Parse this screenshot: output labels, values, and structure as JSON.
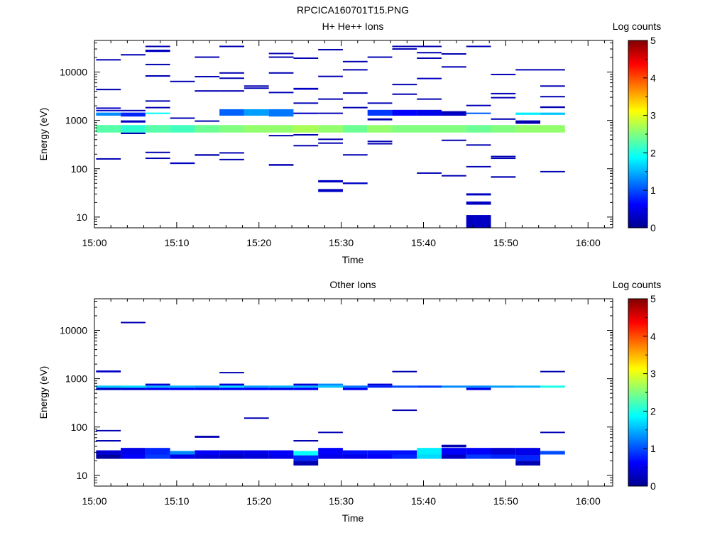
{
  "figure_title": "RPCICA160701T15.PNG",
  "colormap": [
    "#00008f",
    "#0000ff",
    "#0080ff",
    "#00ffff",
    "#80ff80",
    "#ffff00",
    "#ff8000",
    "#ff0000",
    "#800000"
  ],
  "chart_data": [
    {
      "type": "heatmap",
      "title": "H+ He++ Ions",
      "xlabel": "Time",
      "ylabel": "Energy (eV)",
      "x_range": [
        "15:00",
        "16:03"
      ],
      "x_ticks": [
        "15:00",
        "15:10",
        "15:20",
        "15:30",
        "15:40",
        "15:50",
        "16:00"
      ],
      "ylim": [
        6,
        45000
      ],
      "y_scale": "log",
      "y_ticks": [
        10,
        100,
        1000,
        10000
      ],
      "colorbar": {
        "label": "Log counts",
        "range": [
          0,
          5
        ],
        "ticks": [
          "0",
          "1",
          "2",
          "3",
          "4",
          "5"
        ]
      },
      "cells": [
        [
          0,
          560,
          800,
          2.3
        ],
        [
          0,
          1250,
          1450,
          1.3
        ],
        [
          0,
          1550,
          1650,
          0.3
        ],
        [
          0,
          1750,
          1850,
          0.3
        ],
        [
          0,
          4200,
          4500,
          0.2
        ],
        [
          0,
          17500,
          18500,
          0.2
        ],
        [
          0,
          155,
          165,
          0.2
        ],
        [
          1,
          560,
          800,
          2.1
        ],
        [
          1,
          1200,
          1450,
          0.8
        ],
        [
          1,
          1550,
          1650,
          0.2
        ],
        [
          1,
          22500,
          23500,
          0.2
        ],
        [
          1,
          900,
          1000,
          0.3
        ],
        [
          1,
          520,
          560,
          0.2
        ],
        [
          2,
          560,
          800,
          2.3
        ],
        [
          2,
          1350,
          1450,
          1.9
        ],
        [
          2,
          1800,
          1900,
          0.2
        ],
        [
          2,
          2450,
          2600,
          0.2
        ],
        [
          2,
          8000,
          8600,
          0.2
        ],
        [
          2,
          14000,
          14800,
          0.2
        ],
        [
          2,
          26000,
          29000,
          0.3
        ],
        [
          2,
          33000,
          35000,
          0.2
        ],
        [
          2,
          215,
          225,
          0.2
        ],
        [
          2,
          160,
          170,
          0.2
        ],
        [
          3,
          560,
          800,
          2.2
        ],
        [
          3,
          1100,
          1150,
          0.2
        ],
        [
          3,
          6300,
          6600,
          0.2
        ],
        [
          3,
          125,
          135,
          0.3
        ],
        [
          4,
          560,
          800,
          2.4
        ],
        [
          4,
          950,
          1000,
          0.2
        ],
        [
          4,
          8000,
          8300,
          0.2
        ],
        [
          4,
          4000,
          4200,
          0.2
        ],
        [
          4,
          20000,
          21000,
          0.2
        ],
        [
          4,
          185,
          200,
          0.2
        ],
        [
          5,
          560,
          800,
          2.5
        ],
        [
          5,
          1250,
          1700,
          1.1
        ],
        [
          5,
          4000,
          4200,
          0.2
        ],
        [
          5,
          7400,
          7700,
          0.2
        ],
        [
          5,
          9500,
          9900,
          0.2
        ],
        [
          5,
          33000,
          35000,
          0.2
        ],
        [
          5,
          210,
          220,
          0.2
        ],
        [
          5,
          150,
          160,
          0.2
        ],
        [
          6,
          560,
          800,
          2.6
        ],
        [
          6,
          1250,
          1700,
          1.4
        ],
        [
          6,
          4500,
          4800,
          0.2
        ],
        [
          6,
          5000,
          5300,
          0.2
        ],
        [
          7,
          560,
          800,
          2.6
        ],
        [
          7,
          1200,
          1700,
          1.2
        ],
        [
          7,
          470,
          500,
          0.2
        ],
        [
          7,
          115,
          125,
          0.2
        ],
        [
          7,
          3700,
          3900,
          0.2
        ],
        [
          7,
          9500,
          9900,
          0.2
        ],
        [
          7,
          20000,
          21000,
          0.2
        ],
        [
          7,
          24000,
          25000,
          0.2
        ],
        [
          8,
          560,
          800,
          2.7
        ],
        [
          8,
          1350,
          1450,
          0.3
        ],
        [
          8,
          2200,
          2350,
          0.2
        ],
        [
          8,
          4300,
          4700,
          0.3
        ],
        [
          8,
          19000,
          20000,
          0.2
        ],
        [
          8,
          290,
          310,
          0.2
        ],
        [
          8,
          500,
          520,
          0.2
        ],
        [
          9,
          560,
          800,
          2.6
        ],
        [
          9,
          1400,
          1450,
          0.2
        ],
        [
          9,
          2700,
          2850,
          0.2
        ],
        [
          9,
          8000,
          8400,
          0.2
        ],
        [
          9,
          28000,
          30000,
          0.2
        ],
        [
          9,
          400,
          420,
          0.2
        ],
        [
          9,
          330,
          350,
          0.2
        ],
        [
          9,
          52,
          58,
          0.3
        ],
        [
          9,
          33,
          38,
          0.3
        ],
        [
          10,
          560,
          800,
          2.4
        ],
        [
          10,
          1800,
          1900,
          0.2
        ],
        [
          10,
          3600,
          3800,
          0.2
        ],
        [
          10,
          11000,
          11500,
          0.2
        ],
        [
          10,
          16000,
          17000,
          0.2
        ],
        [
          10,
          190,
          200,
          0.2
        ],
        [
          10,
          48,
          52,
          0.3
        ],
        [
          11,
          560,
          800,
          2.6
        ],
        [
          11,
          1250,
          1650,
          0.9
        ],
        [
          11,
          1000,
          1100,
          0.2
        ],
        [
          11,
          2200,
          2350,
          0.2
        ],
        [
          11,
          20000,
          21000,
          0.2
        ],
        [
          11,
          360,
          380,
          0.2
        ],
        [
          11,
          320,
          340,
          0.2
        ],
        [
          12,
          560,
          800,
          2.5
        ],
        [
          12,
          1250,
          1650,
          0.6
        ],
        [
          12,
          3400,
          3600,
          0.2
        ],
        [
          12,
          5400,
          5700,
          0.2
        ],
        [
          12,
          29000,
          31000,
          0.2
        ],
        [
          12,
          33000,
          35000,
          0.2
        ],
        [
          13,
          560,
          800,
          2.5
        ],
        [
          13,
          1250,
          1650,
          0.5
        ],
        [
          13,
          2700,
          2850,
          0.2
        ],
        [
          13,
          7200,
          7600,
          0.3
        ],
        [
          13,
          19000,
          20000,
          0.2
        ],
        [
          13,
          25000,
          26000,
          0.2
        ],
        [
          13,
          33000,
          35000,
          0.2
        ],
        [
          13,
          80,
          84,
          0.2
        ],
        [
          14,
          560,
          800,
          2.5
        ],
        [
          14,
          1250,
          1550,
          0.2
        ],
        [
          14,
          1300,
          1400,
          0.4
        ],
        [
          14,
          12500,
          13200,
          0.2
        ],
        [
          14,
          23500,
          24500,
          0.2
        ],
        [
          14,
          380,
          400,
          0.2
        ],
        [
          14,
          70,
          74,
          0.2
        ],
        [
          15,
          560,
          800,
          2.4
        ],
        [
          15,
          1350,
          1450,
          1.1
        ],
        [
          15,
          2000,
          2100,
          0.2
        ],
        [
          15,
          33000,
          35000,
          0.2
        ],
        [
          15,
          300,
          320,
          0.2
        ],
        [
          15,
          108,
          114,
          0.2
        ],
        [
          15,
          28,
          31,
          0.3
        ],
        [
          15,
          18,
          21,
          0.3
        ],
        [
          15,
          6,
          11,
          0.3
        ],
        [
          16,
          560,
          800,
          2.5
        ],
        [
          16,
          1050,
          1100,
          0.2
        ],
        [
          16,
          2900,
          3050,
          0.2
        ],
        [
          16,
          3500,
          3700,
          0.2
        ],
        [
          16,
          8800,
          9200,
          0.2
        ],
        [
          16,
          175,
          185,
          0.2
        ],
        [
          16,
          160,
          170,
          0.2
        ],
        [
          16,
          65,
          70,
          0.2
        ],
        [
          17,
          560,
          800,
          2.6
        ],
        [
          17,
          850,
          1000,
          0.2
        ],
        [
          17,
          1300,
          1450,
          1.8
        ],
        [
          17,
          11000,
          11500,
          0.2
        ],
        [
          18,
          560,
          800,
          2.6
        ],
        [
          18,
          1300,
          1450,
          1.6
        ],
        [
          18,
          1800,
          1950,
          0.2
        ],
        [
          18,
          3000,
          3200,
          0.2
        ],
        [
          18,
          5000,
          5300,
          0.2
        ],
        [
          18,
          11000,
          11500,
          0.2
        ],
        [
          18,
          85,
          90,
          0.2
        ]
      ]
    },
    {
      "type": "heatmap",
      "title": "Other Ions",
      "xlabel": "Time",
      "ylabel": "Energy (eV)",
      "x_range": [
        "15:00",
        "16:03"
      ],
      "x_ticks": [
        "15:00",
        "15:10",
        "15:20",
        "15:30",
        "15:40",
        "15:50",
        "16:00"
      ],
      "ylim": [
        6,
        45000
      ],
      "y_scale": "log",
      "y_ticks": [
        10,
        100,
        1000,
        10000
      ],
      "colorbar": {
        "label": "Log counts",
        "range": [
          0,
          5
        ],
        "ticks": [
          "0",
          "1",
          "2",
          "3",
          "4",
          "5"
        ]
      },
      "cells": [
        [
          0,
          22,
          27,
          0.1
        ],
        [
          0,
          27,
          33,
          0.4
        ],
        [
          0,
          580,
          650,
          0.3
        ],
        [
          0,
          650,
          720,
          1.6
        ],
        [
          0,
          1350,
          1480,
          0.3
        ],
        [
          0,
          84,
          87,
          0.2
        ],
        [
          0,
          50,
          54,
          0.2
        ],
        [
          1,
          22,
          27,
          0.6
        ],
        [
          1,
          27,
          37,
          0.5
        ],
        [
          1,
          580,
          650,
          0.4
        ],
        [
          1,
          650,
          720,
          1.7
        ],
        [
          1,
          14000,
          15000,
          0.2
        ],
        [
          2,
          22,
          27,
          0.9
        ],
        [
          2,
          27,
          37,
          0.8
        ],
        [
          2,
          580,
          650,
          0.6
        ],
        [
          2,
          650,
          720,
          1.5
        ],
        [
          2,
          720,
          790,
          0.4
        ],
        [
          3,
          22,
          27,
          0.5
        ],
        [
          3,
          27,
          32,
          1.3
        ],
        [
          3,
          580,
          650,
          0.6
        ],
        [
          3,
          650,
          720,
          1.5
        ],
        [
          4,
          22,
          27,
          0.4
        ],
        [
          4,
          27,
          33,
          0.6
        ],
        [
          4,
          580,
          650,
          0.5
        ],
        [
          4,
          650,
          720,
          1.4
        ],
        [
          4,
          60,
          66,
          0.2
        ],
        [
          5,
          22,
          27,
          0.3
        ],
        [
          5,
          27,
          33,
          0.5
        ],
        [
          5,
          580,
          650,
          0.6
        ],
        [
          5,
          650,
          720,
          1.7
        ],
        [
          5,
          720,
          790,
          0.4
        ],
        [
          5,
          1320,
          1380,
          0.2
        ],
        [
          6,
          22,
          27,
          0.4
        ],
        [
          6,
          27,
          33,
          0.5
        ],
        [
          6,
          580,
          650,
          0.6
        ],
        [
          6,
          650,
          720,
          1.4
        ],
        [
          6,
          150,
          158,
          0.2
        ],
        [
          7,
          22,
          27,
          0.5
        ],
        [
          7,
          27,
          33,
          0.6
        ],
        [
          7,
          580,
          650,
          0.5
        ],
        [
          7,
          650,
          720,
          1.5
        ],
        [
          8,
          16,
          20,
          0.2
        ],
        [
          8,
          20,
          26,
          0.8
        ],
        [
          8,
          26,
          32,
          1.9
        ],
        [
          8,
          580,
          650,
          0.6
        ],
        [
          8,
          650,
          720,
          1.5
        ],
        [
          8,
          720,
          790,
          0.4
        ],
        [
          8,
          50,
          54,
          0.2
        ],
        [
          9,
          22,
          27,
          0.5
        ],
        [
          9,
          27,
          37,
          0.6
        ],
        [
          9,
          650,
          720,
          1.6
        ],
        [
          9,
          720,
          790,
          1.3
        ],
        [
          9,
          76,
          80,
          0.2
        ],
        [
          10,
          22,
          27,
          0.5
        ],
        [
          10,
          27,
          33,
          0.7
        ],
        [
          10,
          580,
          650,
          0.6
        ],
        [
          10,
          650,
          720,
          1.2
        ],
        [
          11,
          22,
          27,
          0.6
        ],
        [
          11,
          27,
          33,
          0.7
        ],
        [
          11,
          650,
          720,
          0.8
        ],
        [
          11,
          720,
          790,
          0.4
        ],
        [
          12,
          22,
          27,
          0.8
        ],
        [
          12,
          27,
          33,
          0.7
        ],
        [
          12,
          650,
          720,
          1.0
        ],
        [
          12,
          1400,
          1450,
          0.2
        ],
        [
          12,
          220,
          230,
          0.2
        ],
        [
          13,
          22,
          27,
          1.7
        ],
        [
          13,
          27,
          37,
          1.8
        ],
        [
          13,
          650,
          720,
          0.9
        ],
        [
          14,
          22,
          27,
          0.3
        ],
        [
          14,
          27,
          37,
          0.6
        ],
        [
          14,
          650,
          720,
          1.3
        ],
        [
          14,
          38,
          43,
          0.2
        ],
        [
          15,
          22,
          27,
          0.9
        ],
        [
          15,
          27,
          37,
          0.6
        ],
        [
          15,
          580,
          650,
          0.5
        ],
        [
          15,
          650,
          720,
          1.3
        ],
        [
          16,
          22,
          27,
          0.8
        ],
        [
          16,
          27,
          37,
          0.4
        ],
        [
          16,
          650,
          720,
          1.4
        ],
        [
          17,
          16,
          20,
          0.2
        ],
        [
          17,
          20,
          26,
          0.8
        ],
        [
          17,
          26,
          37,
          0.5
        ],
        [
          17,
          650,
          720,
          1.5
        ],
        [
          18,
          27,
          32,
          1.0
        ],
        [
          18,
          650,
          720,
          2.0
        ],
        [
          18,
          1380,
          1450,
          0.2
        ],
        [
          18,
          76,
          80,
          0.2
        ]
      ]
    }
  ]
}
